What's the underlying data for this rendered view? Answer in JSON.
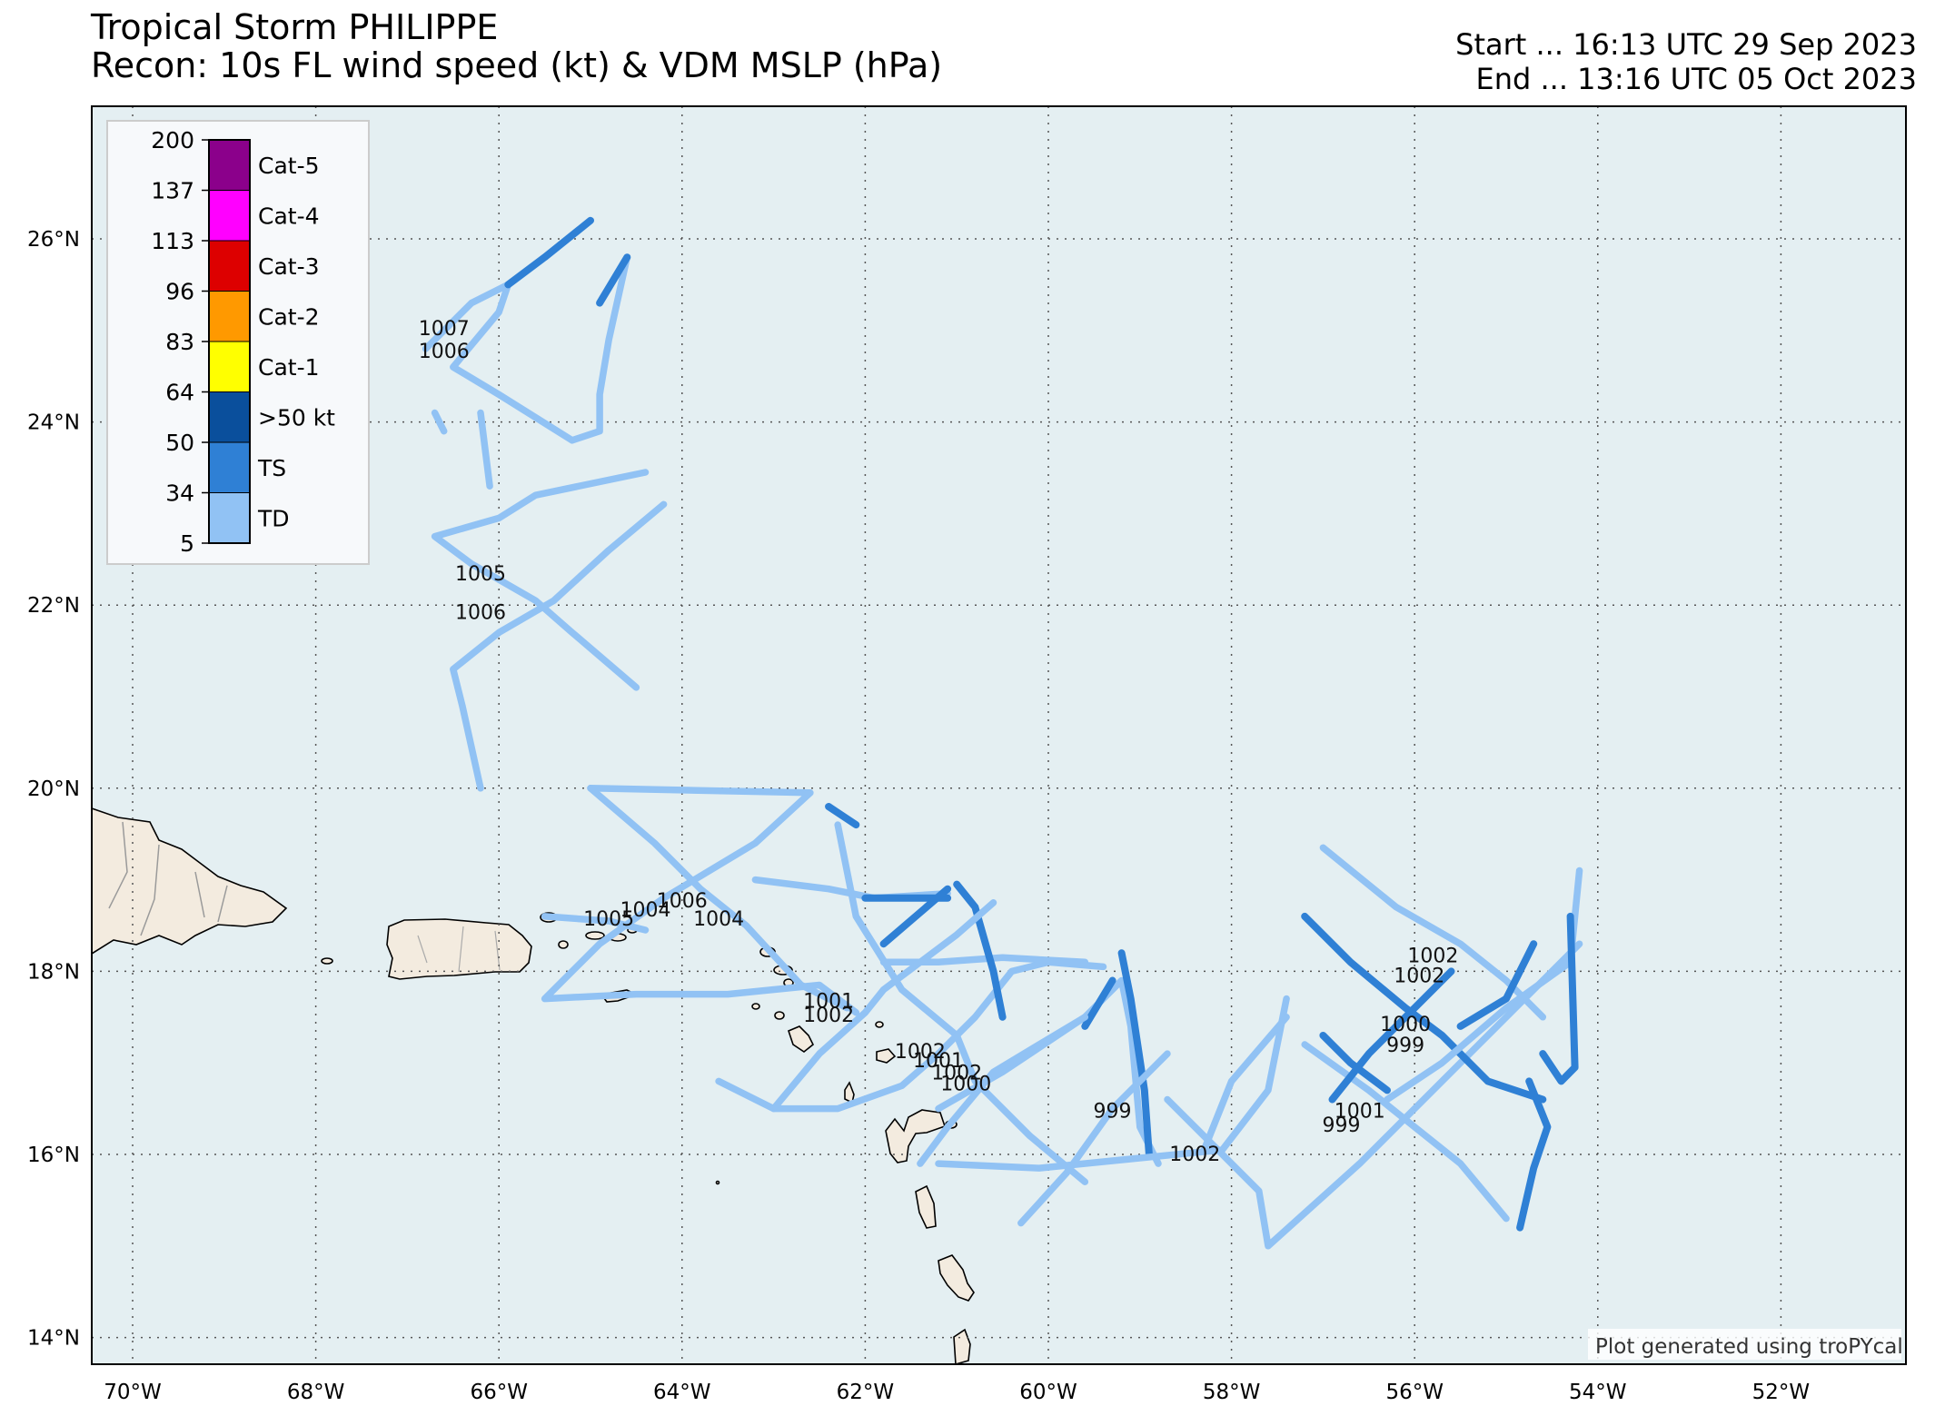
{
  "title": {
    "line1": "Tropical Storm PHILIPPE",
    "line2": "Recon: 10s FL wind speed (kt) & VDM MSLP (hPa)"
  },
  "time_range": {
    "start": "Start ... 16:13 UTC 29 Sep 2023",
    "end": "End ... 13:16 UTC 05 Oct 2023"
  },
  "credit": "Plot generated using troPYcal",
  "axes": {
    "lat_labels": [
      "26°N",
      "24°N",
      "22°N",
      "20°N",
      "18°N",
      "16°N",
      "14°N"
    ],
    "lon_labels": [
      "70°W",
      "68°W",
      "66°W",
      "64°W",
      "62°W",
      "60°W",
      "58°W",
      "56°W",
      "54°W",
      "52°W"
    ]
  },
  "legend": {
    "ticks": [
      "200",
      "137",
      "113",
      "96",
      "83",
      "64",
      "50",
      "34",
      "5"
    ],
    "categories": [
      {
        "label": "Cat-5",
        "color": "#8b008b"
      },
      {
        "label": "Cat-4",
        "color": "#ff00ff"
      },
      {
        "label": "Cat-3",
        "color": "#dd0000"
      },
      {
        "label": "Cat-2",
        "color": "#ff9900"
      },
      {
        "label": "Cat-1",
        "color": "#ffff00"
      },
      {
        "label": ">50 kt",
        "color": "#0a4f9c"
      },
      {
        "label": "TS",
        "color": "#2f80d5"
      },
      {
        "label": "TD",
        "color": "#91c2f4"
      }
    ]
  },
  "colors": {
    "ocean": "#e4eff2",
    "land": "#f3ebdf",
    "grid": "#555555",
    "td": "#91c2f4",
    "ts": "#2f80d5",
    "gt50": "#0a4f9c"
  },
  "vdm_pressures": [
    {
      "value": "1007",
      "lon": -66.6,
      "lat": 24.95
    },
    {
      "value": "1006",
      "lon": -66.6,
      "lat": 24.7
    },
    {
      "value": "1005",
      "lon": -66.2,
      "lat": 22.27
    },
    {
      "value": "1006",
      "lon": -66.2,
      "lat": 21.85
    },
    {
      "value": "1006",
      "lon": -64.0,
      "lat": 18.7
    },
    {
      "value": "1004",
      "lon": -64.4,
      "lat": 18.6
    },
    {
      "value": "1005",
      "lon": -64.8,
      "lat": 18.5
    },
    {
      "value": "1004",
      "lon": -63.6,
      "lat": 18.5
    },
    {
      "value": "1001",
      "lon": -62.4,
      "lat": 17.6
    },
    {
      "value": "1002",
      "lon": -62.4,
      "lat": 17.45
    },
    {
      "value": "1002",
      "lon": -61.4,
      "lat": 17.05
    },
    {
      "value": "1001",
      "lon": -61.2,
      "lat": 16.95
    },
    {
      "value": "1002",
      "lon": -61.0,
      "lat": 16.82
    },
    {
      "value": "1000",
      "lon": -60.9,
      "lat": 16.7
    },
    {
      "value": "999",
      "lon": -59.3,
      "lat": 16.4
    },
    {
      "value": "1002",
      "lon": -58.4,
      "lat": 15.93
    },
    {
      "value": "1002",
      "lon": -55.8,
      "lat": 18.1
    },
    {
      "value": "1002",
      "lon": -55.95,
      "lat": 17.88
    },
    {
      "value": "1000",
      "lon": -56.1,
      "lat": 17.35
    },
    {
      "value": "999",
      "lon": -56.1,
      "lat": 17.12
    },
    {
      "value": "1001",
      "lon": -56.6,
      "lat": 16.4
    },
    {
      "value": "999",
      "lon": -56.8,
      "lat": 16.25
    }
  ],
  "flight_tracks": [
    {
      "category": "TD",
      "points": [
        [
          -66.8,
          24.8
        ],
        [
          -66.3,
          25.3
        ],
        [
          -65.9,
          25.5
        ],
        [
          -66.0,
          25.2
        ],
        [
          -66.5,
          24.6
        ],
        [
          -66.0,
          24.3
        ],
        [
          -65.2,
          23.8
        ],
        [
          -64.9,
          23.9
        ],
        [
          -64.9,
          24.3
        ],
        [
          -64.8,
          24.9
        ],
        [
          -64.6,
          25.8
        ]
      ]
    },
    {
      "category": "TS",
      "points": [
        [
          -64.9,
          25.3
        ],
        [
          -64.6,
          25.8
        ]
      ]
    },
    {
      "category": "TS",
      "points": [
        [
          -65.9,
          25.5
        ],
        [
          -65.5,
          25.8
        ],
        [
          -65.0,
          26.2
        ]
      ]
    },
    {
      "category": "TD",
      "points": [
        [
          -66.2,
          24.1
        ],
        [
          -66.1,
          23.3
        ]
      ]
    },
    {
      "category": "TD",
      "points": [
        [
          -66.7,
          24.1
        ],
        [
          -66.6,
          23.9
        ]
      ]
    },
    {
      "category": "TD",
      "points": [
        [
          -64.4,
          23.45
        ],
        [
          -65.6,
          23.2
        ],
        [
          -66.0,
          22.95
        ],
        [
          -66.7,
          22.75
        ],
        [
          -66.3,
          22.45
        ],
        [
          -65.6,
          22.05
        ],
        [
          -65.2,
          21.7
        ],
        [
          -64.5,
          21.1
        ]
      ]
    },
    {
      "category": "TD",
      "points": [
        [
          -64.2,
          23.1
        ],
        [
          -64.8,
          22.6
        ],
        [
          -65.4,
          22.05
        ],
        [
          -66.0,
          21.7
        ],
        [
          -66.5,
          21.3
        ],
        [
          -66.4,
          20.9
        ],
        [
          -66.2,
          20.0
        ]
      ]
    },
    {
      "category": "TD",
      "points": [
        [
          -65.0,
          20.0
        ],
        [
          -62.6,
          19.95
        ],
        [
          -63.2,
          19.4
        ],
        [
          -64.2,
          18.8
        ],
        [
          -64.9,
          18.3
        ],
        [
          -65.5,
          17.7
        ],
        [
          -64.5,
          17.75
        ],
        [
          -63.5,
          17.75
        ],
        [
          -62.5,
          17.85
        ],
        [
          -62.1,
          17.55
        ]
      ]
    },
    {
      "category": "TD",
      "points": [
        [
          -65.0,
          20.0
        ],
        [
          -64.3,
          19.4
        ],
        [
          -63.8,
          18.9
        ],
        [
          -63.3,
          18.5
        ],
        [
          -62.7,
          17.85
        ],
        [
          -62.2,
          17.6
        ]
      ]
    },
    {
      "category": "TD",
      "points": [
        [
          -65.5,
          18.6
        ],
        [
          -64.8,
          18.55
        ],
        [
          -64.4,
          18.45
        ]
      ]
    },
    {
      "category": "TD",
      "points": [
        [
          -63.2,
          19.0
        ],
        [
          -62.4,
          18.9
        ],
        [
          -61.9,
          18.8
        ],
        [
          -61.1,
          18.85
        ]
      ]
    },
    {
      "category": "TS",
      "points": [
        [
          -62.0,
          18.8
        ],
        [
          -61.1,
          18.8
        ]
      ]
    },
    {
      "category": "TD",
      "points": [
        [
          -62.3,
          19.6
        ],
        [
          -62.1,
          18.6
        ],
        [
          -61.6,
          17.8
        ],
        [
          -61.0,
          17.3
        ],
        [
          -60.8,
          16.8
        ],
        [
          -60.2,
          16.2
        ],
        [
          -59.6,
          15.7
        ]
      ]
    },
    {
      "category": "TS",
      "points": [
        [
          -62.4,
          19.8
        ],
        [
          -62.1,
          19.6
        ]
      ]
    },
    {
      "category": "TD",
      "points": [
        [
          -63.6,
          16.8
        ],
        [
          -63.0,
          16.5
        ],
        [
          -62.3,
          16.5
        ],
        [
          -61.6,
          16.75
        ],
        [
          -61.2,
          17.1
        ],
        [
          -60.8,
          17.5
        ],
        [
          -60.4,
          18.0
        ],
        [
          -60.0,
          18.1
        ],
        [
          -59.4,
          18.05
        ]
      ]
    },
    {
      "category": "TD",
      "points": [
        [
          -61.8,
          18.1
        ],
        [
          -61.2,
          18.1
        ],
        [
          -60.5,
          18.15
        ],
        [
          -59.6,
          18.1
        ]
      ]
    },
    {
      "category": "TS",
      "points": [
        [
          -61.0,
          18.95
        ],
        [
          -60.8,
          18.7
        ],
        [
          -60.6,
          18.0
        ],
        [
          -60.5,
          17.5
        ]
      ]
    },
    {
      "category": "TD",
      "points": [
        [
          -63.0,
          16.5
        ],
        [
          -62.5,
          17.1
        ],
        [
          -62.0,
          17.55
        ],
        [
          -61.8,
          17.8
        ],
        [
          -61.0,
          18.4
        ],
        [
          -60.6,
          18.75
        ]
      ]
    },
    {
      "category": "TS",
      "points": [
        [
          -61.8,
          18.3
        ],
        [
          -61.1,
          18.9
        ]
      ]
    },
    {
      "category": "TD",
      "points": [
        [
          -61.2,
          16.5
        ],
        [
          -60.5,
          16.9
        ],
        [
          -59.6,
          17.5
        ],
        [
          -59.2,
          17.9
        ],
        [
          -59.1,
          17.4
        ],
        [
          -59.0,
          16.3
        ],
        [
          -58.8,
          15.9
        ]
      ]
    },
    {
      "category": "TS",
      "points": [
        [
          -59.6,
          17.4
        ],
        [
          -59.3,
          17.9
        ]
      ]
    },
    {
      "category": "TS",
      "points": [
        [
          -59.2,
          18.2
        ],
        [
          -59.1,
          17.7
        ],
        [
          -58.95,
          16.7
        ],
        [
          -58.9,
          16.0
        ]
      ]
    },
    {
      "category": "TD",
      "points": [
        [
          -61.2,
          15.9
        ],
        [
          -60.1,
          15.85
        ],
        [
          -59.1,
          15.95
        ],
        [
          -58.1,
          16.05
        ],
        [
          -57.6,
          16.7
        ],
        [
          -57.4,
          17.7
        ]
      ]
    },
    {
      "category": "TD",
      "points": [
        [
          -61.4,
          15.9
        ],
        [
          -61.1,
          16.3
        ],
        [
          -60.6,
          16.9
        ],
        [
          -60.1,
          17.2
        ],
        [
          -59.6,
          17.5
        ]
      ]
    },
    {
      "category": "TD",
      "points": [
        [
          -60.3,
          15.25
        ],
        [
          -59.8,
          15.8
        ],
        [
          -59.3,
          16.5
        ],
        [
          -58.7,
          17.1
        ]
      ]
    },
    {
      "category": "TD",
      "points": [
        [
          -58.7,
          16.6
        ],
        [
          -58.3,
          16.2
        ],
        [
          -57.7,
          15.6
        ],
        [
          -57.6,
          15.0
        ],
        [
          -56.6,
          15.9
        ],
        [
          -55.9,
          16.6
        ],
        [
          -55.3,
          17.2
        ],
        [
          -54.6,
          17.9
        ],
        [
          -54.2,
          18.3
        ]
      ]
    },
    {
      "category": "TD",
      "points": [
        [
          -57.0,
          19.35
        ],
        [
          -56.2,
          18.7
        ],
        [
          -55.5,
          18.3
        ],
        [
          -55.0,
          17.9
        ],
        [
          -54.6,
          17.5
        ]
      ]
    },
    {
      "category": "TS",
      "points": [
        [
          -57.2,
          18.6
        ],
        [
          -56.7,
          18.1
        ],
        [
          -56.1,
          17.6
        ],
        [
          -55.7,
          17.3
        ],
        [
          -55.2,
          16.8
        ],
        [
          -54.6,
          16.6
        ]
      ]
    },
    {
      "category": "TD",
      "points": [
        [
          -57.2,
          17.2
        ],
        [
          -56.5,
          16.7
        ],
        [
          -56.0,
          16.3
        ],
        [
          -55.5,
          15.9
        ],
        [
          -55.0,
          15.3
        ]
      ]
    },
    {
      "category": "TS",
      "points": [
        [
          -57.0,
          17.3
        ],
        [
          -56.7,
          17.0
        ],
        [
          -56.3,
          16.7
        ]
      ]
    },
    {
      "category": "TD",
      "points": [
        [
          -56.3,
          16.6
        ],
        [
          -55.7,
          17.0
        ],
        [
          -55.0,
          17.6
        ],
        [
          -54.3,
          18.1
        ],
        [
          -54.2,
          19.1
        ]
      ]
    },
    {
      "category": "TS",
      "points": [
        [
          -55.5,
          17.4
        ],
        [
          -55.0,
          17.7
        ],
        [
          -54.7,
          18.3
        ]
      ]
    },
    {
      "category": "TS",
      "points": [
        [
          -54.6,
          17.1
        ],
        [
          -54.4,
          16.8
        ],
        [
          -54.25,
          16.95
        ],
        [
          -54.3,
          18.6
        ]
      ]
    },
    {
      "category": "TS",
      "points": [
        [
          -54.75,
          16.8
        ],
        [
          -54.55,
          16.3
        ],
        [
          -54.7,
          15.85
        ],
        [
          -54.85,
          15.2
        ]
      ]
    },
    {
      "category": "TS",
      "points": [
        [
          -56.9,
          16.6
        ],
        [
          -56.5,
          17.1
        ],
        [
          -56.0,
          17.6
        ],
        [
          -55.6,
          18.0
        ]
      ]
    },
    {
      "category": "TD",
      "points": [
        [
          -58.3,
          16.05
        ],
        [
          -58.0,
          16.8
        ],
        [
          -57.4,
          17.5
        ]
      ]
    }
  ]
}
